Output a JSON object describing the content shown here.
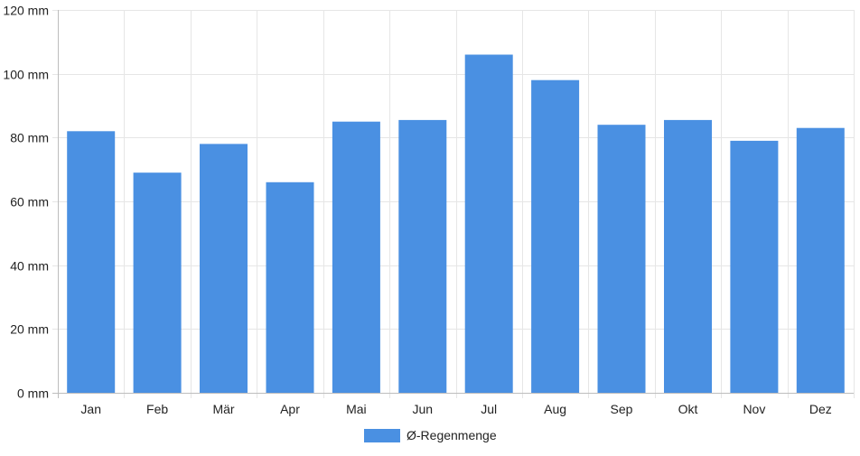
{
  "chart_data": {
    "type": "bar",
    "categories": [
      "Jan",
      "Feb",
      "Mär",
      "Apr",
      "Mai",
      "Jun",
      "Jul",
      "Aug",
      "Sep",
      "Okt",
      "Nov",
      "Dez"
    ],
    "series": [
      {
        "name": "Ø-Regenmenge",
        "values": [
          82,
          69,
          78,
          66,
          85,
          85.5,
          106,
          98,
          84,
          85.5,
          79,
          83
        ],
        "color": "#4a90e2"
      }
    ],
    "ylim": [
      0,
      120
    ],
    "y_ticks": [
      0,
      20,
      40,
      60,
      80,
      100,
      120
    ],
    "y_tick_labels": [
      "0 mm",
      "20 mm",
      "40 mm",
      "60 mm",
      "80 mm",
      "100 mm",
      "120 mm"
    ],
    "grid": true,
    "legend_position": "bottom-center"
  }
}
